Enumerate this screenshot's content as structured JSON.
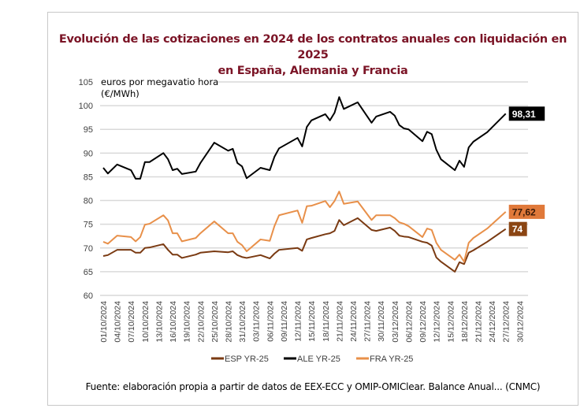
{
  "title_line1": "Evolución de las cotizaciones en 2024 de los contratos anuales con liquidación en 2025",
  "title_line2": "en España, Alemania y Francia",
  "footer": "Fuente: elaboración propia a partir de datos de EEX-ECC y OMIP-OMIClear. Balance Anual... (CNMC)",
  "chart_data": {
    "type": "line",
    "ylabel_line1": "euros por megavatio hora",
    "ylabel_line2": "(€/MWh)",
    "ylim": [
      60,
      105
    ],
    "yticks": [
      60,
      65,
      70,
      75,
      80,
      85,
      90,
      95,
      100,
      105
    ],
    "xlim": [
      "01/10/2024",
      "30/12/2024"
    ],
    "xticks": [
      "01/10/2024",
      "04/10/2024",
      "07/10/2024",
      "10/10/2024",
      "13/10/2024",
      "16/10/2024",
      "19/10/2024",
      "22/10/2024",
      "25/10/2024",
      "28/10/2024",
      "31/10/2024",
      "03/11/2024",
      "06/11/2024",
      "09/11/2024",
      "12/11/2024",
      "15/11/2024",
      "18/11/2024",
      "21/11/2024",
      "24/11/2024",
      "27/11/2024",
      "30/11/2024",
      "03/12/2024",
      "06/12/2024",
      "09/12/2024",
      "12/12/2024",
      "15/12/2024",
      "18/12/2024",
      "21/12/2024",
      "24/12/2024",
      "27/12/2024",
      "30/12/2024"
    ],
    "grid": "horizontal",
    "legend_position": "bottom",
    "x": [
      "01/10/2024",
      "02/10/2024",
      "04/10/2024",
      "07/10/2024",
      "08/10/2024",
      "09/10/2024",
      "10/10/2024",
      "11/10/2024",
      "14/10/2024",
      "15/10/2024",
      "16/10/2024",
      "17/10/2024",
      "18/10/2024",
      "21/10/2024",
      "22/10/2024",
      "25/10/2024",
      "28/10/2024",
      "29/10/2024",
      "30/10/2024",
      "31/10/2024",
      "01/11/2024",
      "04/11/2024",
      "06/11/2024",
      "07/11/2024",
      "08/11/2024",
      "12/11/2024",
      "13/11/2024",
      "14/11/2024",
      "15/11/2024",
      "18/11/2024",
      "19/11/2024",
      "20/11/2024",
      "21/11/2024",
      "22/11/2024",
      "25/11/2024",
      "28/11/2024",
      "29/11/2024",
      "02/12/2024",
      "03/12/2024",
      "04/12/2024",
      "05/12/2024",
      "06/12/2024",
      "09/12/2024",
      "10/12/2024",
      "11/12/2024",
      "12/12/2024",
      "13/12/2024",
      "16/12/2024",
      "17/12/2024",
      "18/12/2024",
      "19/12/2024",
      "20/12/2024",
      "23/12/2024",
      "27/12/2024"
    ],
    "series": [
      {
        "name": "ESP YR-25",
        "color": "#7a3a12",
        "end_label": "74",
        "label_bg": "#8b4513",
        "label_fg": "#ffffff",
        "values": [
          68.3,
          68.5,
          69.6,
          69.6,
          69.0,
          69.0,
          70.0,
          70.1,
          70.8,
          69.6,
          68.6,
          68.6,
          67.9,
          68.6,
          69.0,
          69.3,
          69.1,
          69.3,
          68.5,
          68.1,
          67.9,
          68.5,
          67.8,
          68.8,
          69.6,
          70.0,
          69.4,
          71.8,
          72.1,
          72.9,
          73.1,
          73.6,
          75.9,
          74.8,
          76.3,
          73.8,
          73.6,
          74.3,
          73.6,
          72.6,
          72.4,
          72.3,
          71.3,
          71.1,
          70.5,
          68.0,
          67.1,
          65.0,
          67.0,
          66.6,
          69.0,
          69.5,
          71.3,
          74.0
        ]
      },
      {
        "name": "ALE YR-25",
        "color": "#000000",
        "end_label": "98,31",
        "label_bg": "#000000",
        "label_fg": "#ffffff",
        "values": [
          86.9,
          85.7,
          87.6,
          86.4,
          84.6,
          84.6,
          88.1,
          88.1,
          90.0,
          88.7,
          86.4,
          86.7,
          85.6,
          86.1,
          87.9,
          92.2,
          90.5,
          90.9,
          87.9,
          87.2,
          84.7,
          86.9,
          86.4,
          89.2,
          91.0,
          93.2,
          91.4,
          95.5,
          96.9,
          98.2,
          96.9,
          98.5,
          101.8,
          99.3,
          100.7,
          96.4,
          97.7,
          98.7,
          97.9,
          95.9,
          95.2,
          95.0,
          92.5,
          94.5,
          94.0,
          90.7,
          88.7,
          86.4,
          88.4,
          87.1,
          91.2,
          92.4,
          94.4,
          98.31
        ]
      },
      {
        "name": "FRA YR-25",
        "color": "#e8904a",
        "end_label": "77,62",
        "label_bg": "#e0793a",
        "label_fg": "#3a1a08",
        "values": [
          71.3,
          70.9,
          72.6,
          72.3,
          71.4,
          72.3,
          74.9,
          75.1,
          76.9,
          75.8,
          73.1,
          73.1,
          71.4,
          72.1,
          73.1,
          75.6,
          73.1,
          73.1,
          71.3,
          70.6,
          69.3,
          71.8,
          71.5,
          74.6,
          76.9,
          77.9,
          75.3,
          78.8,
          78.9,
          79.9,
          78.6,
          79.9,
          81.9,
          79.3,
          79.8,
          75.9,
          76.9,
          76.9,
          76.3,
          75.4,
          75.1,
          74.6,
          72.3,
          74.1,
          73.8,
          71.1,
          69.6,
          67.5,
          68.6,
          67.1,
          71.1,
          72.1,
          74.1,
          77.62
        ]
      }
    ]
  }
}
